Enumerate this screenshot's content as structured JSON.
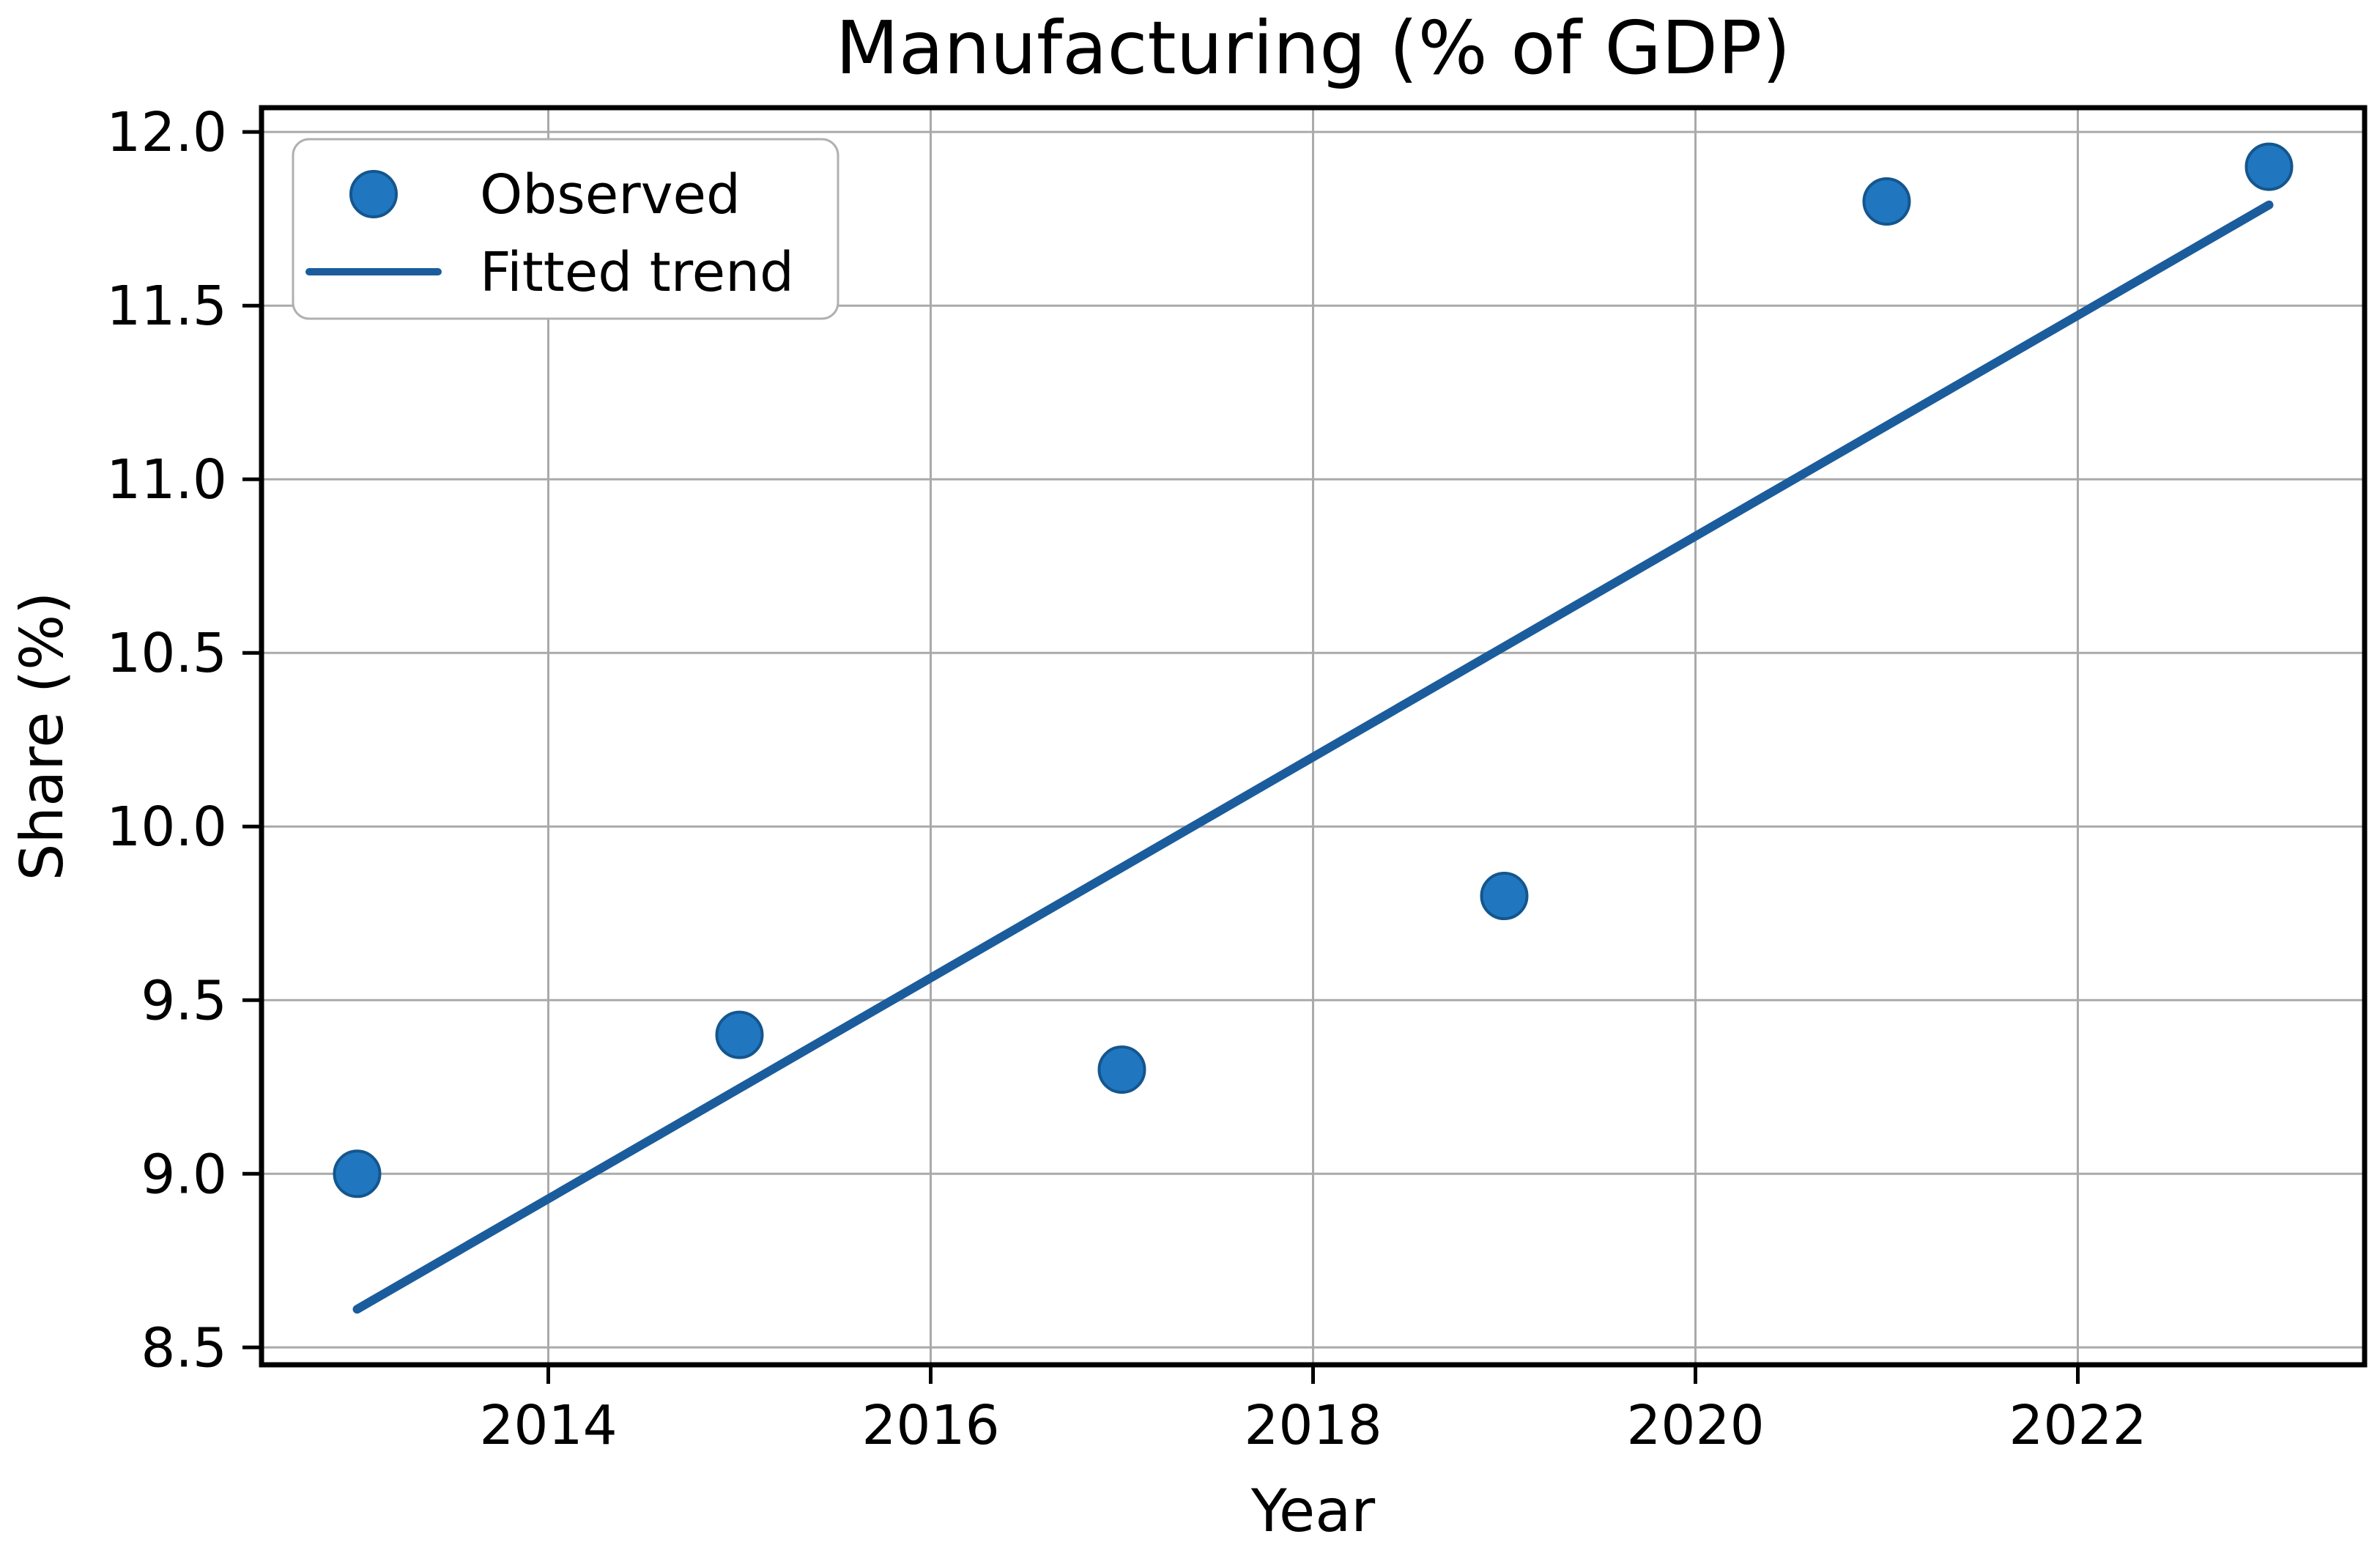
{
  "figure": {
    "background": "#ffffff"
  },
  "chart_data": {
    "type": "scatter",
    "title": "Manufacturing (% of GDP)",
    "xlabel": "Year",
    "ylabel": "Share (%)",
    "xlim": [
      2012.5,
      2023.5
    ],
    "ylim": [
      8.45,
      12.07
    ],
    "grid": true,
    "xticks": {
      "values": [
        2014,
        2016,
        2018,
        2020,
        2022
      ],
      "labels": [
        "2014",
        "2016",
        "2018",
        "2020",
        "2022"
      ]
    },
    "yticks": {
      "values": [
        8.5,
        9.0,
        9.5,
        10.0,
        10.5,
        11.0,
        11.5,
        12.0
      ],
      "labels": [
        "8.5",
        "9.0",
        "9.5",
        "10.0",
        "10.5",
        "11.0",
        "11.5",
        "12.0"
      ]
    },
    "legend": {
      "position": "upper-left",
      "entries": [
        {
          "label": "Observed",
          "glyph": "marker"
        },
        {
          "label": "Fitted trend",
          "glyph": "line"
        }
      ]
    },
    "series": [
      {
        "name": "Observed",
        "type": "scatter",
        "x": [
          2013,
          2015,
          2017,
          2019,
          2021,
          2023
        ],
        "y": [
          9.0,
          9.4,
          9.3,
          9.8,
          11.8,
          11.9
        ]
      },
      {
        "name": "Fitted trend",
        "type": "line",
        "x": [
          2013,
          2023
        ],
        "y": [
          8.61,
          11.79
        ]
      }
    ],
    "colors": {
      "marker": "#2077c0",
      "marker_edge": "#14568e",
      "trend_line": "#1b5c9c",
      "grid_line": "#aaaaaa",
      "axis": "#000000",
      "legend_border": "#b0b0b0",
      "legend_background": "#ffffff",
      "background": "#ffffff"
    }
  }
}
